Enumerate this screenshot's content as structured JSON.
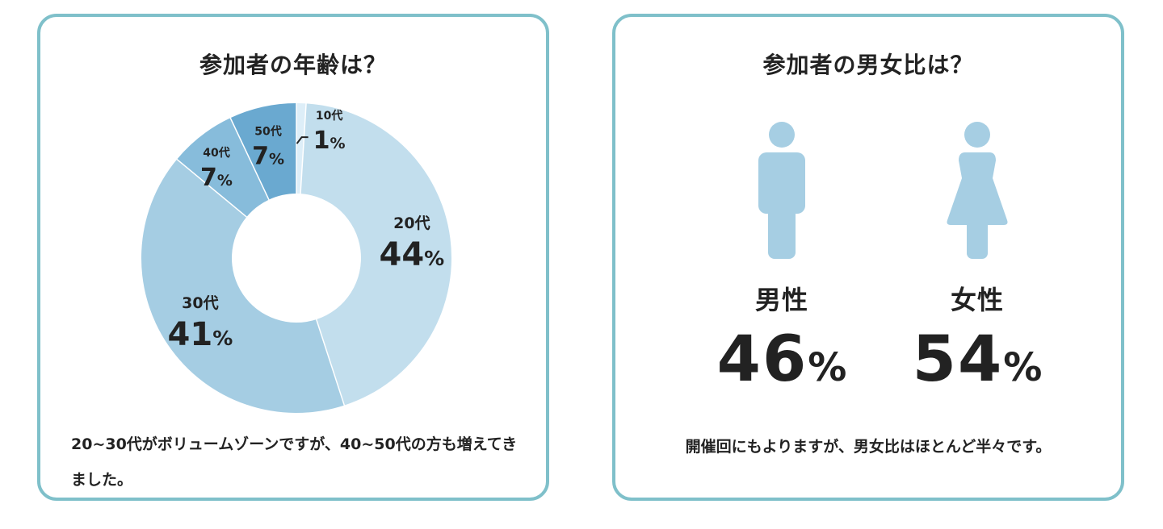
{
  "chart_data": [
    {
      "type": "pie",
      "variant": "donut",
      "title": "参加者の年齢は？",
      "categories": [
        "10代",
        "20代",
        "30代",
        "40代",
        "50代"
      ],
      "values": [
        1,
        44,
        41,
        7,
        7
      ],
      "unit": "%",
      "colors": [
        "#ddeef8",
        "#c2deed",
        "#a5cde3",
        "#87bcdb",
        "#6aa9d0"
      ]
    },
    {
      "type": "icon-comparison",
      "title": "参加者の男女比は？",
      "categories": [
        "男性",
        "女性"
      ],
      "values": [
        46,
        54
      ],
      "unit": "%",
      "icon_color": "#a6cee3"
    }
  ],
  "age": {
    "note": "20~30代がボリュームゾーンですが、40~50代の方も増えてきました。"
  },
  "gender": {
    "note": "開催回にもよりますが、男女比はほとんど半々です。",
    "icons": [
      "male-person-icon",
      "female-person-icon"
    ]
  },
  "colors": {
    "border": "#7fc0ca",
    "text": "#222222"
  }
}
